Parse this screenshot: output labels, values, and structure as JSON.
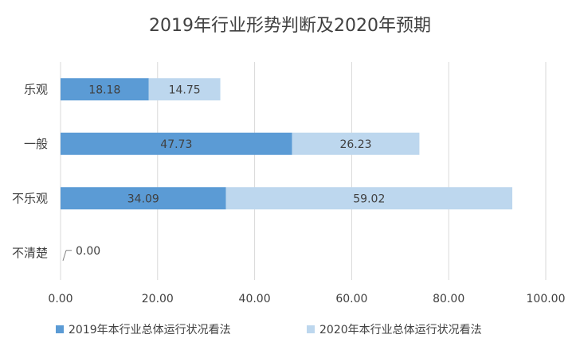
{
  "chart_data": {
    "type": "bar",
    "orientation": "horizontal",
    "stacked": true,
    "title": "2019年行业形势判断及2020年预期",
    "categories": [
      "乐观",
      "一般",
      "不乐观",
      "不清楚"
    ],
    "series": [
      {
        "name": "2019年本行业总体运行状况看法",
        "values": [
          18.18,
          47.73,
          34.09,
          0.0
        ],
        "color": "#5b9bd5"
      },
      {
        "name": "2020年本行业总体运行状况看法",
        "values": [
          14.75,
          26.23,
          59.02,
          0.0
        ],
        "color": "#bdd7ee"
      }
    ],
    "data_labels": [
      [
        "18.18",
        "47.73",
        "34.09",
        "0.00"
      ],
      [
        "14.75",
        "26.23",
        "59.02",
        ""
      ]
    ],
    "xlim": [
      0,
      100
    ],
    "xticks": [
      "0.00",
      "20.00",
      "40.00",
      "60.00",
      "80.00",
      "100.00"
    ],
    "xlabel": "",
    "ylabel": "",
    "grid": true,
    "legend_position": "bottom"
  }
}
